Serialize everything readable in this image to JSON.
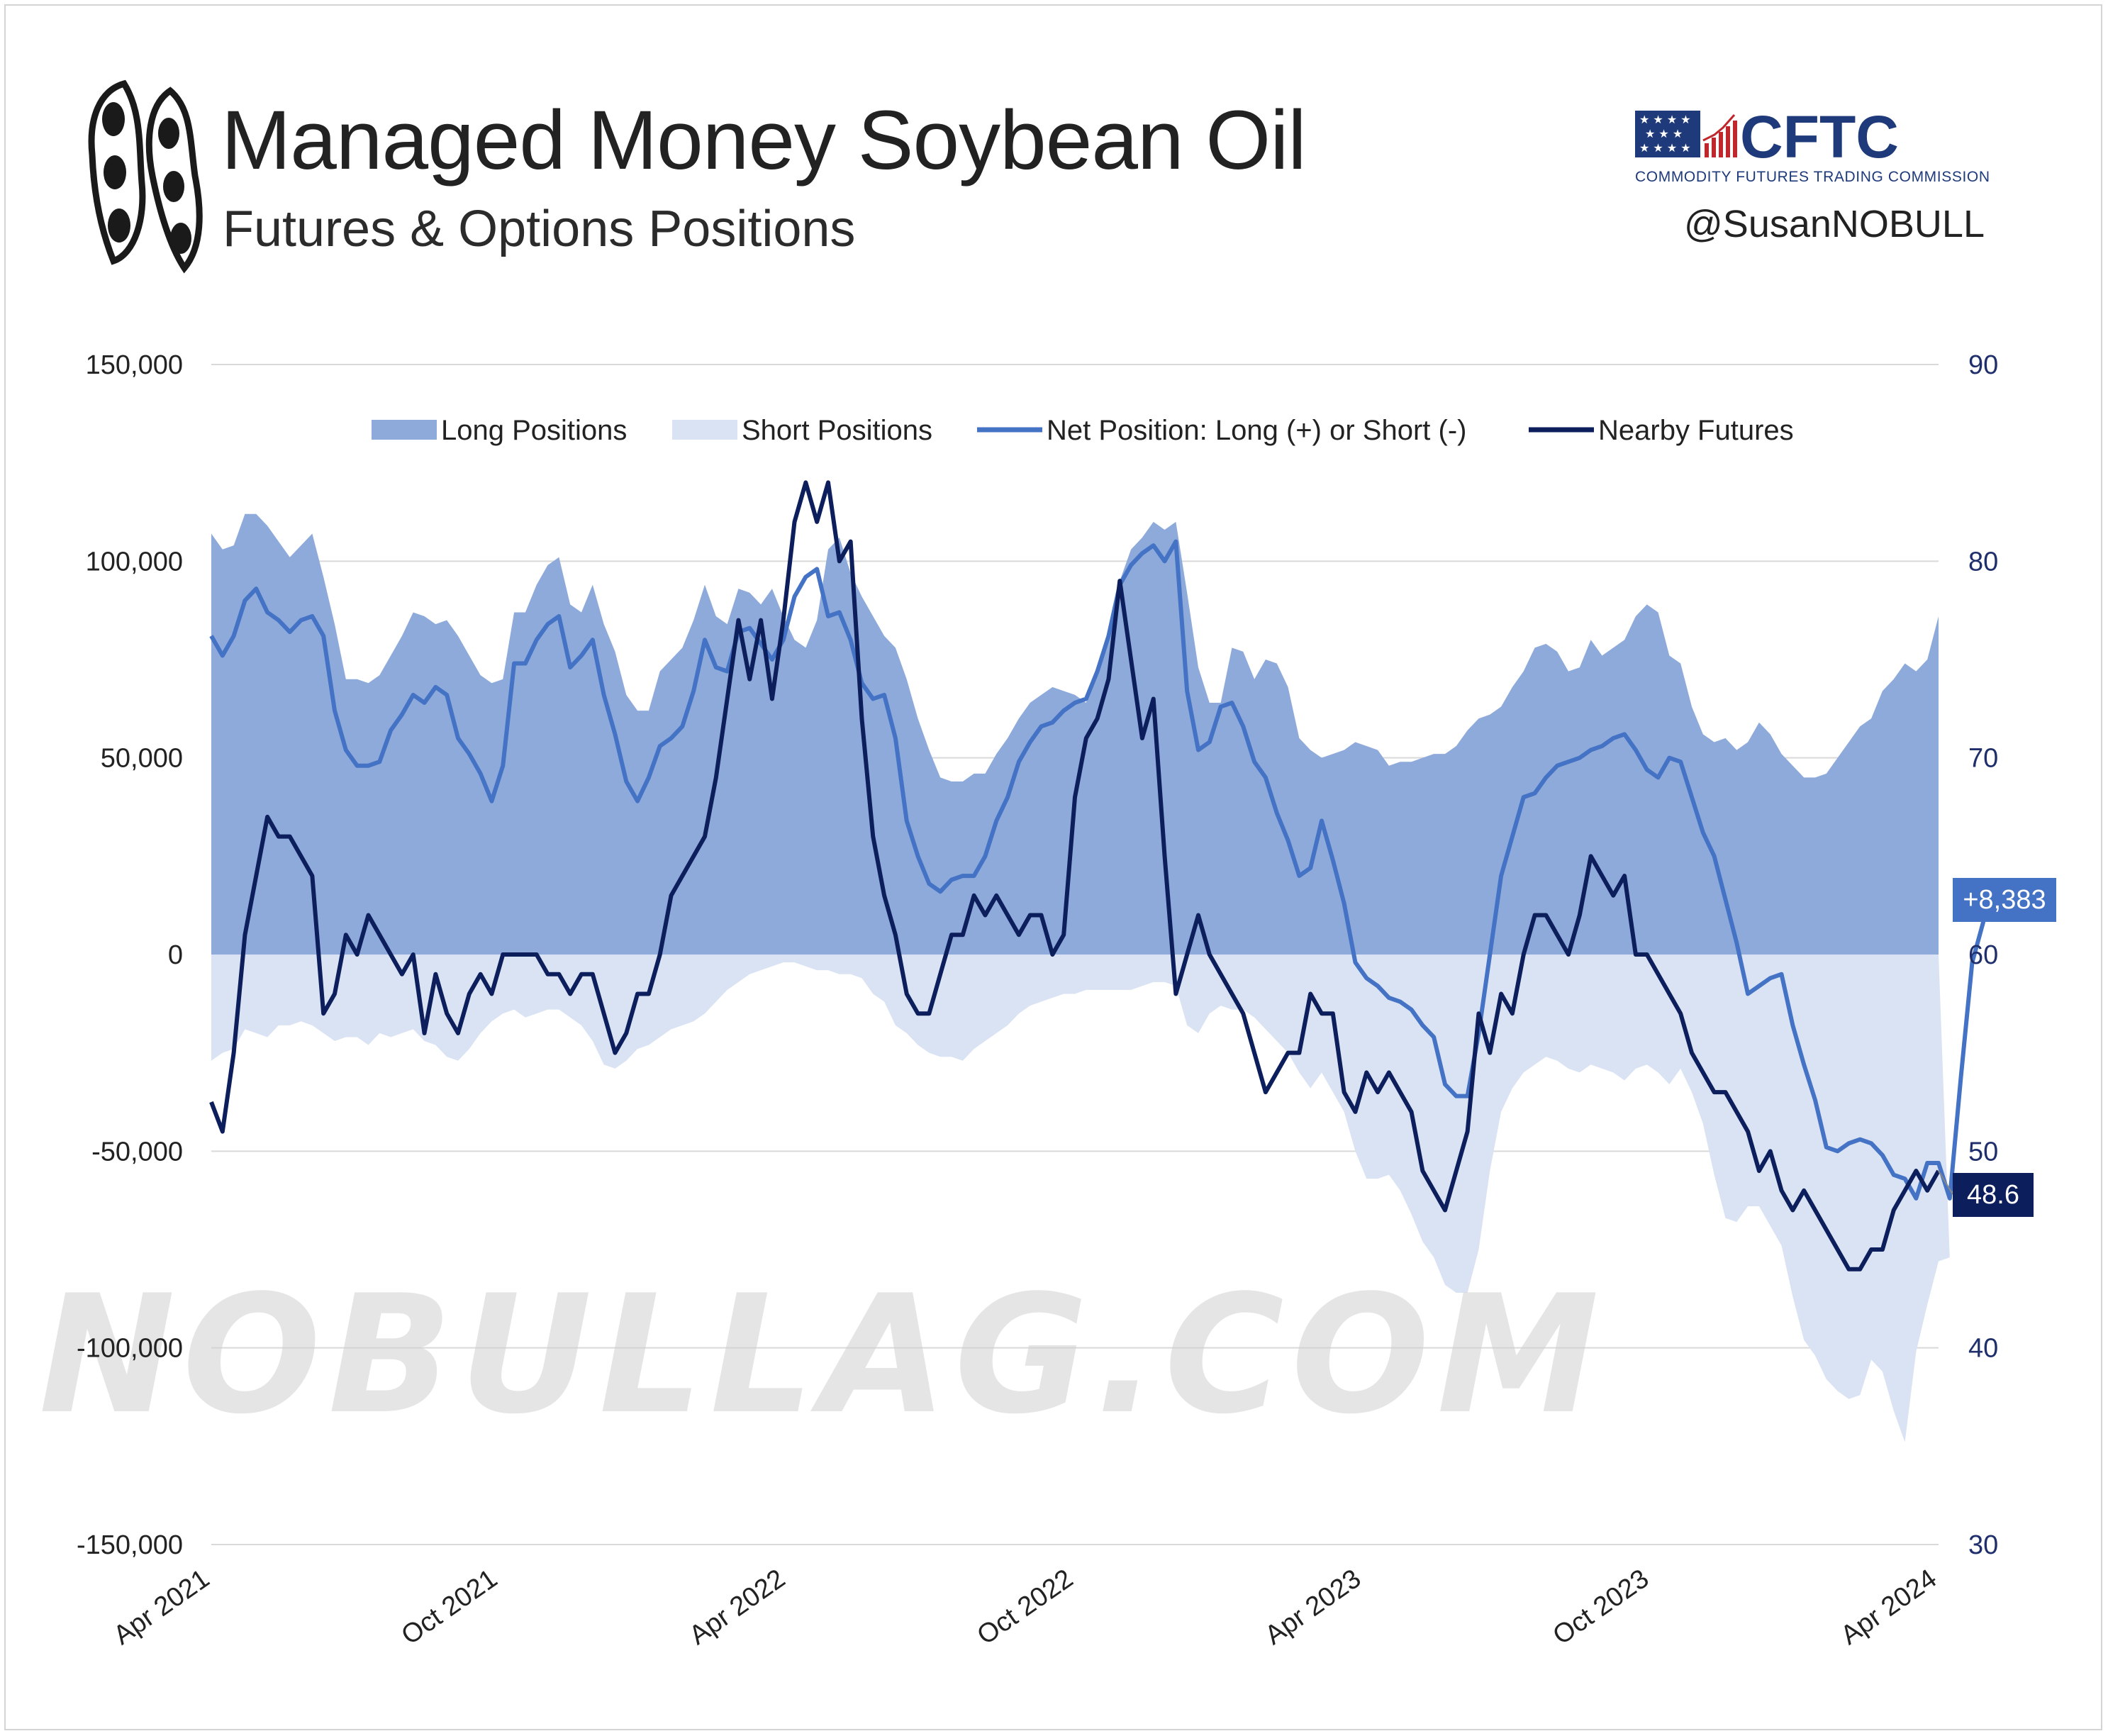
{
  "header": {
    "title": "Managed Money Soybean Oil",
    "subtitle": "Futures & Options Positions",
    "agency_name": "CFTC",
    "agency_full": "COMMODITY FUTURES TRADING COMMISSION",
    "handle": "@SusanNOBULL",
    "watermark": "NOBULLAG.COM"
  },
  "colors": {
    "long_fill": "#8eaadb",
    "short_fill": "#dae3f3",
    "net_line": "#4472c4",
    "futures_line": "#0c1e5b",
    "grid": "#d9d9d9"
  },
  "chart_data": {
    "type": "area",
    "title": "Managed Money Soybean Oil",
    "subtitle": "Futures & Options Positions",
    "x_range": [
      "2021-04",
      "2024-04"
    ],
    "x_ticks": [
      "Apr 2021",
      "Oct 2021",
      "Apr 2022",
      "Oct 2022",
      "Apr 2023",
      "Oct 2023",
      "Apr 2024"
    ],
    "y_left": {
      "ticks": [
        "150,000",
        "100,000",
        "50,000",
        "0",
        "-50,000",
        "-100,000",
        "-150,000"
      ],
      "range": [
        -150000,
        150000
      ]
    },
    "y_right": {
      "ticks": [
        "90",
        "80",
        "70",
        "60",
        "50",
        "40",
        "30"
      ],
      "range": [
        30,
        90
      ]
    },
    "legend": {
      "position": "top",
      "items": [
        "Long Positions",
        "Short Positions",
        "Net Position: Long (+) or Short (-)",
        "Nearby Futures"
      ]
    },
    "grid": true,
    "latest_net_label": "+8,383",
    "latest_futures_label": "48.6",
    "series": [
      {
        "name": "Long Positions",
        "axis": "left",
        "values": [
          107000,
          103000,
          104000,
          112000,
          112000,
          109000,
          105000,
          101000,
          104000,
          107000,
          96000,
          84000,
          70000,
          70000,
          69000,
          71000,
          76000,
          81000,
          87000,
          86000,
          84000,
          85000,
          81000,
          76000,
          71000,
          69000,
          70000,
          87000,
          87000,
          94000,
          99000,
          101000,
          89000,
          87000,
          94000,
          84000,
          77000,
          66000,
          62000,
          62000,
          72000,
          75000,
          78000,
          85000,
          94000,
          86000,
          84000,
          93000,
          92000,
          89000,
          93000,
          86000,
          80000,
          78000,
          85000,
          103000,
          106000,
          97000,
          91000,
          86000,
          81000,
          78000,
          70000,
          60000,
          52000,
          45000,
          44000,
          44000,
          46000,
          46000,
          51000,
          55000,
          60000,
          64000,
          66000,
          68000,
          67000,
          66000,
          64000,
          73000,
          82000,
          95000,
          103000,
          106000,
          110000,
          108000,
          110000,
          92000,
          73000,
          64000,
          64000,
          78000,
          77000,
          70000,
          75000,
          74000,
          68000,
          55000,
          52000,
          50000,
          51000,
          52000,
          54000,
          53000,
          52000,
          48000,
          49000,
          49000,
          50000,
          51000,
          51000,
          53000,
          57000,
          60000,
          61000,
          63000,
          68000,
          72000,
          78000,
          79000,
          77000,
          72000,
          73000,
          80000,
          76000,
          78000,
          80000,
          86000,
          89000,
          87000,
          76000,
          74000,
          63000,
          56000,
          54000,
          55000,
          52000,
          54000,
          59000,
          56000,
          51000,
          48000,
          45000,
          45000,
          46000,
          50000,
          54000,
          58000,
          60000,
          67000,
          70000,
          74000,
          72000,
          75000,
          86000
        ]
      },
      {
        "name": "Short Positions",
        "axis": "left",
        "values": [
          -27000,
          -25000,
          -24000,
          -19000,
          -20000,
          -21000,
          -18000,
          -18000,
          -17000,
          -18000,
          -20000,
          -22000,
          -21000,
          -21000,
          -23000,
          -20000,
          -21000,
          -20000,
          -19000,
          -22000,
          -23000,
          -26000,
          -27000,
          -24000,
          -20000,
          -17000,
          -15000,
          -14000,
          -16000,
          -15000,
          -14000,
          -14000,
          -16000,
          -18000,
          -22000,
          -28000,
          -29000,
          -27000,
          -24000,
          -23000,
          -21000,
          -19000,
          -18000,
          -17000,
          -15000,
          -12000,
          -9000,
          -7000,
          -5000,
          -4000,
          -3000,
          -2000,
          -2000,
          -3000,
          -4000,
          -4000,
          -5000,
          -5000,
          -6000,
          -10000,
          -12000,
          -18000,
          -20000,
          -23000,
          -25000,
          -26000,
          -26000,
          -27000,
          -24000,
          -22000,
          -20000,
          -18000,
          -15000,
          -13000,
          -12000,
          -11000,
          -10000,
          -10000,
          -9000,
          -9000,
          -9000,
          -9000,
          -9000,
          -8000,
          -7000,
          -7000,
          -8000,
          -18000,
          -20000,
          -15000,
          -13000,
          -14000,
          -14000,
          -16000,
          -19000,
          -22000,
          -25000,
          -30000,
          -34000,
          -30000,
          -35000,
          -40000,
          -50000,
          -57000,
          -57000,
          -56000,
          -60000,
          -66000,
          -73000,
          -77000,
          -84000,
          -86000,
          -86000,
          -75000,
          -55000,
          -40000,
          -34000,
          -30000,
          -28000,
          -26000,
          -27000,
          -29000,
          -30000,
          -28000,
          -29000,
          -30000,
          -32000,
          -29000,
          -28000,
          -30000,
          -33000,
          -29000,
          -35000,
          -43000,
          -56000,
          -67000,
          -68000,
          -64000,
          -64000,
          -69000,
          -74000,
          -87000,
          -98000,
          -102000,
          -108000,
          -111000,
          -113000,
          -112000,
          -103000,
          -106000,
          -116000,
          -124000,
          -101000,
          -89000,
          -78000,
          -77000
        ]
      },
      {
        "name": "Net Position: Long (+) or Short (-)",
        "axis": "left",
        "values": [
          81000,
          76000,
          81000,
          90000,
          93000,
          87000,
          85000,
          82000,
          85000,
          86000,
          81000,
          62000,
          52000,
          48000,
          48000,
          49000,
          57000,
          61000,
          66000,
          64000,
          68000,
          66000,
          55000,
          51000,
          46000,
          39000,
          48000,
          74000,
          74000,
          80000,
          84000,
          86000,
          73000,
          76000,
          80000,
          66000,
          56000,
          44000,
          39000,
          45000,
          53000,
          55000,
          58000,
          67000,
          80000,
          73000,
          72000,
          82000,
          83000,
          79000,
          75000,
          80000,
          91000,
          96000,
          98000,
          86000,
          87000,
          80000,
          69000,
          65000,
          66000,
          55000,
          34000,
          25000,
          18000,
          16000,
          19000,
          20000,
          20000,
          25000,
          34000,
          40000,
          49000,
          54000,
          58000,
          59000,
          62000,
          64000,
          65000,
          72000,
          81000,
          94000,
          99000,
          102000,
          104000,
          100000,
          105000,
          67000,
          52000,
          54000,
          63000,
          64000,
          58000,
          49000,
          45000,
          36000,
          29000,
          20000,
          22000,
          34000,
          24000,
          13000,
          -2000,
          -6000,
          -8000,
          -11000,
          -12000,
          -14000,
          -18000,
          -21000,
          -33000,
          -36000,
          -36000,
          -20000,
          0,
          20000,
          30000,
          40000,
          41000,
          45000,
          48000,
          49000,
          50000,
          52000,
          53000,
          55000,
          56000,
          52000,
          47000,
          45000,
          50000,
          49000,
          40000,
          31000,
          25000,
          14000,
          3000,
          -10000,
          -8000,
          -6000,
          -5000,
          -18000,
          -28000,
          -37000,
          -49000,
          -50000,
          -48000,
          -47000,
          -48000,
          -51000,
          -56000,
          -57000,
          -62000,
          -53000,
          -53000,
          -62000,
          -31000,
          -2000,
          8383
        ]
      },
      {
        "name": "Nearby Futures",
        "axis": "right",
        "values": [
          52.5,
          51,
          55,
          61,
          64,
          67,
          66,
          66,
          65,
          64,
          57,
          58,
          61,
          60,
          62,
          61,
          60,
          59,
          60,
          56,
          59,
          57,
          56,
          58,
          59,
          58,
          60,
          60,
          60,
          60,
          59,
          59,
          58,
          59,
          59,
          57,
          55,
          56,
          58,
          58,
          60,
          63,
          64,
          65,
          66,
          69,
          73,
          77,
          74,
          77,
          73,
          77,
          82,
          84,
          82,
          84,
          80,
          81,
          72,
          66,
          63,
          61,
          58,
          57,
          57,
          59,
          61,
          61,
          63,
          62,
          63,
          62,
          61,
          62,
          62,
          60,
          61,
          68,
          71,
          72,
          74,
          79,
          75,
          71,
          73,
          65,
          58,
          60,
          62,
          60,
          59,
          58,
          57,
          55,
          53,
          54,
          55,
          55,
          58,
          57,
          57,
          53,
          52,
          54,
          53,
          54,
          53,
          52,
          49,
          48,
          47,
          49,
          51,
          57,
          55,
          58,
          57,
          60,
          62,
          62,
          61,
          60,
          62,
          65,
          64,
          63,
          64,
          60,
          60,
          59,
          58,
          57,
          55,
          54,
          53,
          53,
          52,
          51,
          49,
          50,
          48,
          47,
          48,
          47,
          46,
          45,
          44,
          44,
          45,
          45,
          47,
          48,
          49,
          48,
          49
        ]
      }
    ]
  }
}
